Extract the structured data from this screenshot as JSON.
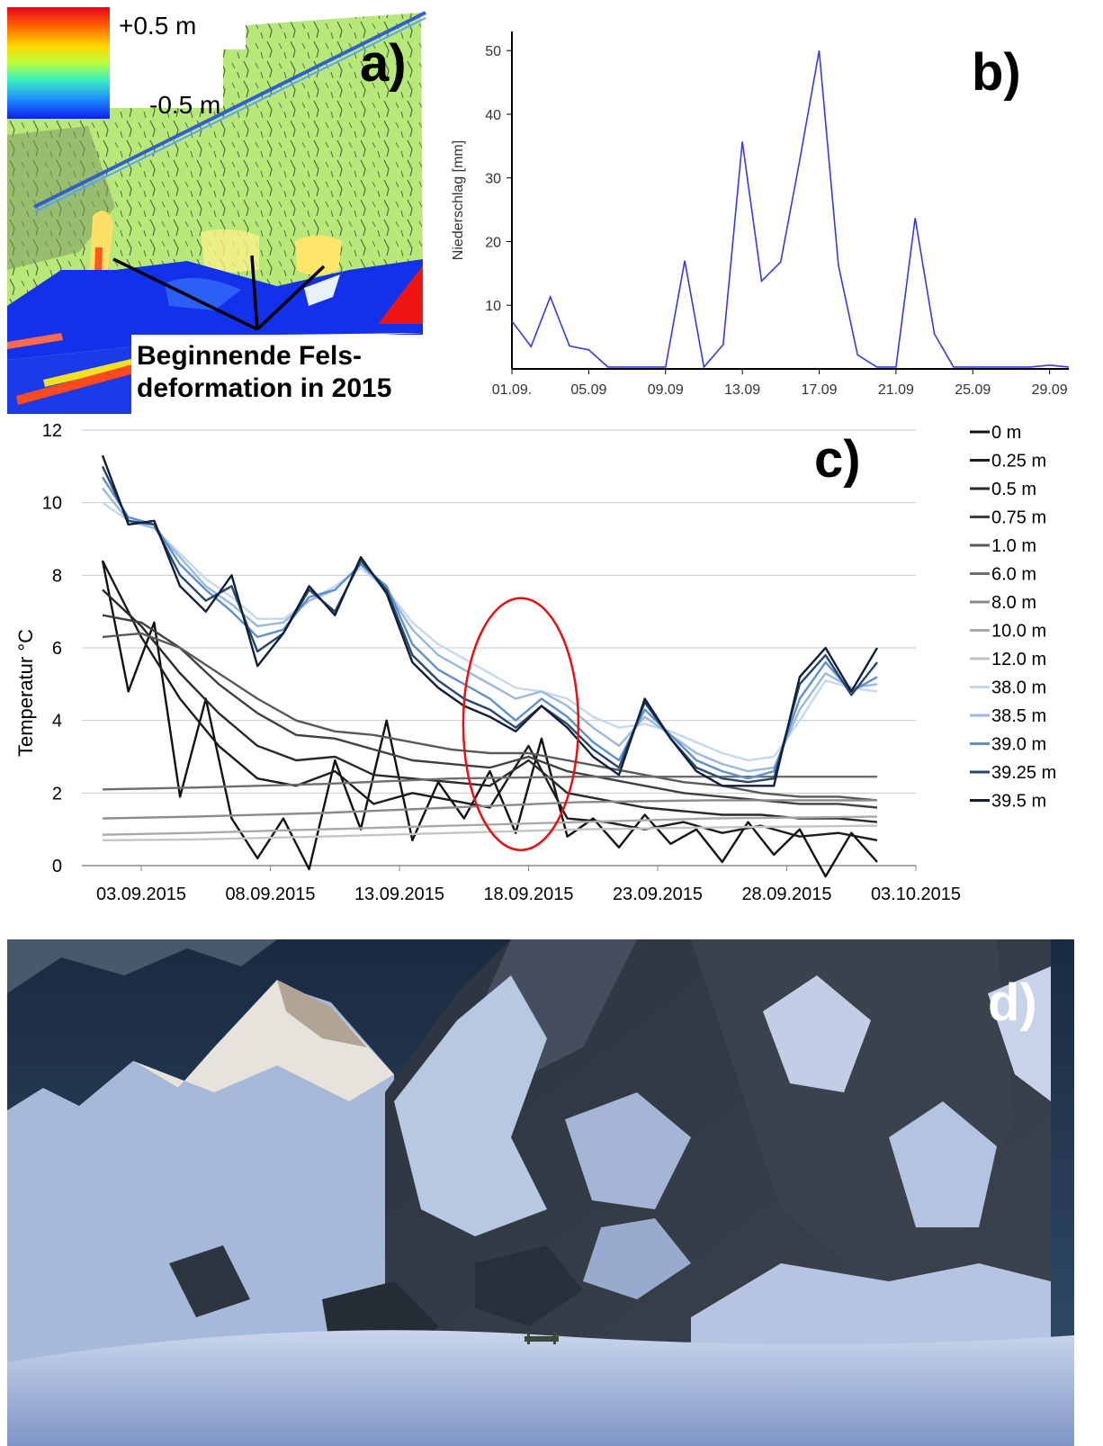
{
  "panel_a": {
    "letter": "a)",
    "colorbar": {
      "max_label": "+0.5 m",
      "min_label": "-0.5 m",
      "colors": [
        "#e8001c",
        "#ff6a00",
        "#ffd800",
        "#b8ff3c",
        "#3cf0c0",
        "#2090ff",
        "#1020f0"
      ]
    },
    "annotation_line1": "Beginnende Fels-",
    "annotation_line2": "deformation in 2015"
  },
  "panel_b": {
    "letter": "b)"
  },
  "panel_c": {
    "letter": "c)"
  },
  "panel_d": {
    "letter": "d)"
  },
  "chart_data": [
    {
      "type": "line",
      "panel": "b",
      "ylabel": "Niederschlag [mm]",
      "xlabel": "",
      "ylim": [
        0,
        53
      ],
      "y_ticks": [
        10,
        20,
        30,
        40,
        50
      ],
      "x_tick_labels": [
        "01.09.",
        "05.09",
        "09.09",
        "13.09",
        "17.09",
        "21.09",
        "25.09",
        "29.09"
      ],
      "x_tick_days": [
        1,
        5,
        9,
        13,
        17,
        21,
        25,
        29
      ],
      "xlim": [
        1,
        30
      ],
      "grid": false,
      "line_color": "#3a3adc",
      "series": [
        {
          "x": [
            1,
            2,
            3,
            4,
            5,
            6,
            7,
            8,
            9,
            10,
            11,
            12,
            13,
            14,
            15,
            16,
            17,
            18,
            19,
            20,
            21,
            22,
            23,
            24,
            25,
            26,
            27,
            28,
            29,
            30
          ],
          "values": [
            7.5,
            3.5,
            11.3,
            3.6,
            3.0,
            0.3,
            0.3,
            0.3,
            0.3,
            17.0,
            0.3,
            3.8,
            35.7,
            13.8,
            16.8,
            33.0,
            50.0,
            16.3,
            2.2,
            0.3,
            0.3,
            23.7,
            5.5,
            0.3,
            0.3,
            0.3,
            0.3,
            0.3,
            0.6,
            0.3
          ]
        }
      ]
    },
    {
      "type": "line",
      "panel": "c",
      "ylabel": "Temperatur °C",
      "xlabel": "",
      "ylim": [
        0,
        12
      ],
      "y_ticks": [
        0,
        2,
        4,
        6,
        8,
        10,
        12
      ],
      "x_tick_labels": [
        "03.09.2015",
        "08.09.2015",
        "13.09.2015",
        "18.09.2015",
        "23.09.2015",
        "28.09.2015",
        "03.10.2015"
      ],
      "x_tick_days": [
        3,
        8,
        13,
        18,
        23,
        28,
        33
      ],
      "xlim": [
        0.7,
        33
      ],
      "grid": true,
      "legend_position": "right",
      "highlight_ellipse": {
        "center_day": 17.7,
        "center_value": 3.9,
        "color": "#e81010"
      },
      "series": [
        {
          "name": "0 m",
          "color": "#111111",
          "x": [
            1.5,
            2.5,
            3.5,
            4.5,
            5.5,
            6.5,
            7.5,
            8.5,
            9.5,
            10.5,
            11.5,
            12.5,
            13.5,
            14.5,
            15.5,
            16.5,
            17.5,
            18.5,
            19.5,
            20.5,
            21.5,
            22.5,
            23.5,
            24.5,
            25.5,
            26.5,
            27.5,
            28.5,
            29.5,
            30.5,
            31.5
          ],
          "values": [
            8.4,
            4.8,
            6.7,
            1.9,
            4.6,
            1.3,
            0.2,
            1.3,
            -0.1,
            2.9,
            1.0,
            4.0,
            0.7,
            2.3,
            1.3,
            2.6,
            0.9,
            3.5,
            0.8,
            1.3,
            0.5,
            1.4,
            0.6,
            1.0,
            0.1,
            1.2,
            0.3,
            1.0,
            -0.3,
            0.9,
            0.1
          ]
        },
        {
          "name": "0.25 m",
          "color": "#1c1c1c",
          "x": [
            1.5,
            3,
            4.5,
            6,
            7.5,
            9,
            10.5,
            12,
            13.5,
            15,
            16.5,
            18,
            19.5,
            21,
            22.5,
            24,
            25.5,
            27,
            28.5,
            30,
            31.5
          ],
          "values": [
            8.4,
            6.3,
            4.6,
            3.3,
            2.4,
            2.2,
            2.6,
            1.7,
            2.0,
            1.8,
            1.6,
            3.3,
            1.3,
            1.2,
            1.0,
            1.2,
            0.9,
            1.1,
            0.8,
            0.9,
            0.7
          ]
        },
        {
          "name": "0.5 m",
          "color": "#2a2a2a",
          "x": [
            1.5,
            3,
            4.5,
            6,
            7.5,
            9,
            10.5,
            12,
            13.5,
            15,
            16.5,
            18,
            19.5,
            21,
            22.5,
            24,
            25.5,
            27,
            28.5,
            30,
            31.5
          ],
          "values": [
            7.6,
            6.6,
            5.3,
            4.2,
            3.3,
            2.9,
            3.0,
            2.5,
            2.4,
            2.3,
            2.2,
            2.9,
            2.0,
            1.8,
            1.6,
            1.5,
            1.4,
            1.4,
            1.3,
            1.3,
            1.2
          ]
        },
        {
          "name": "0.75 m",
          "color": "#404040",
          "x": [
            1.5,
            3,
            4.5,
            6,
            7.5,
            9,
            10.5,
            12,
            13.5,
            15,
            16.5,
            18,
            19.5,
            21,
            22.5,
            24,
            25.5,
            27,
            28.5,
            30,
            31.5
          ],
          "values": [
            6.9,
            6.7,
            6.0,
            5.0,
            4.2,
            3.6,
            3.5,
            3.2,
            2.9,
            2.8,
            2.7,
            3.0,
            2.6,
            2.4,
            2.2,
            2.0,
            1.9,
            1.8,
            1.7,
            1.7,
            1.6
          ]
        },
        {
          "name": "1.0 m",
          "color": "#595959",
          "x": [
            1.5,
            3,
            4.5,
            6,
            7.5,
            9,
            10.5,
            12,
            13.5,
            15,
            16.5,
            18,
            19.5,
            21,
            22.5,
            24,
            25.5,
            27,
            28.5,
            30,
            31.5
          ],
          "values": [
            6.3,
            6.4,
            6.0,
            5.3,
            4.6,
            4.0,
            3.7,
            3.6,
            3.4,
            3.2,
            3.1,
            3.1,
            2.9,
            2.7,
            2.5,
            2.3,
            2.2,
            2.0,
            1.9,
            1.9,
            1.8
          ]
        },
        {
          "name": "6.0 m",
          "color": "#6e6e6e",
          "x": [
            1.5,
            5,
            10,
            15,
            20,
            25,
            31.5
          ],
          "values": [
            2.1,
            2.15,
            2.25,
            2.4,
            2.45,
            2.45,
            2.45
          ]
        },
        {
          "name": "8.0 m",
          "color": "#8a8a8a",
          "x": [
            1.5,
            5,
            10,
            15,
            20,
            25,
            31.5
          ],
          "values": [
            1.3,
            1.35,
            1.45,
            1.6,
            1.75,
            1.8,
            1.8
          ]
        },
        {
          "name": "10.0 m",
          "color": "#a8a8a8",
          "x": [
            1.5,
            5,
            10,
            15,
            20,
            25,
            31.5
          ],
          "values": [
            0.85,
            0.9,
            1.0,
            1.1,
            1.2,
            1.3,
            1.35
          ]
        },
        {
          "name": "12.0 m",
          "color": "#c4c4c4",
          "x": [
            1.5,
            5,
            10,
            15,
            20,
            25,
            31.5
          ],
          "values": [
            0.7,
            0.72,
            0.8,
            0.9,
            1.0,
            1.05,
            1.1
          ]
        },
        {
          "name": "38.0 m",
          "color": "#c6d7ee",
          "x": [
            1.5,
            2.5,
            3.5,
            4.5,
            5.5,
            6.5,
            7.5,
            8.5,
            9.5,
            10.5,
            11.5,
            12.5,
            13.5,
            14.5,
            15.5,
            16.5,
            17.5,
            18.5,
            19.5,
            20.5,
            21.5,
            22.5,
            23.5,
            24.5,
            25.5,
            26.5,
            27.5,
            28.5,
            29.5,
            30.5,
            31.5
          ],
          "values": [
            10.0,
            9.5,
            9.3,
            8.6,
            7.9,
            7.4,
            6.8,
            6.8,
            7.3,
            7.7,
            8.2,
            7.6,
            6.7,
            6.1,
            5.7,
            5.3,
            4.9,
            4.8,
            4.6,
            4.1,
            3.8,
            3.9,
            3.7,
            3.4,
            3.1,
            2.9,
            3.0,
            4.0,
            5.1,
            4.9,
            4.8
          ]
        },
        {
          "name": "38.5 m",
          "color": "#98b8e0",
          "x": [
            1.5,
            2.5,
            3.5,
            4.5,
            5.5,
            6.5,
            7.5,
            8.5,
            9.5,
            10.5,
            11.5,
            12.5,
            13.5,
            14.5,
            15.5,
            16.5,
            17.5,
            18.5,
            19.5,
            20.5,
            21.5,
            22.5,
            23.5,
            24.5,
            25.5,
            26.5,
            27.5,
            28.5,
            29.5,
            30.5,
            31.5
          ],
          "values": [
            10.4,
            9.5,
            9.3,
            8.5,
            7.7,
            7.2,
            6.6,
            6.7,
            7.3,
            7.6,
            8.3,
            7.6,
            6.5,
            5.8,
            5.4,
            5.0,
            4.6,
            4.8,
            4.4,
            3.8,
            3.3,
            4.1,
            3.6,
            3.1,
            2.8,
            2.6,
            2.7,
            4.3,
            5.3,
            4.9,
            5.0
          ]
        },
        {
          "name": "39.0 m",
          "color": "#5f8fcc",
          "x": [
            1.5,
            2.5,
            3.5,
            4.5,
            5.5,
            6.5,
            7.5,
            8.5,
            9.5,
            10.5,
            11.5,
            12.5,
            13.5,
            14.5,
            15.5,
            16.5,
            17.5,
            18.5,
            19.5,
            20.5,
            21.5,
            22.5,
            23.5,
            24.5,
            25.5,
            26.5,
            27.5,
            28.5,
            29.5,
            30.5,
            31.5
          ],
          "values": [
            10.7,
            9.6,
            9.4,
            8.3,
            7.6,
            7.0,
            6.3,
            6.5,
            7.4,
            7.6,
            8.3,
            7.7,
            6.1,
            5.4,
            5.0,
            4.6,
            4.0,
            4.6,
            4.1,
            3.4,
            2.9,
            4.3,
            3.6,
            2.9,
            2.6,
            2.4,
            2.6,
            4.6,
            5.6,
            4.8,
            5.2
          ]
        },
        {
          "name": "39.25 m",
          "color": "#27476e",
          "x": [
            1.5,
            2.5,
            3.5,
            4.5,
            5.5,
            6.5,
            7.5,
            8.5,
            9.5,
            10.5,
            11.5,
            12.5,
            13.5,
            14.5,
            15.5,
            16.5,
            17.5,
            18.5,
            19.5,
            20.5,
            21.5,
            22.5,
            23.5,
            24.5,
            25.5,
            26.5,
            27.5,
            28.5,
            29.5,
            30.5,
            31.5
          ],
          "values": [
            11.0,
            9.5,
            9.4,
            8.0,
            7.3,
            7.7,
            5.9,
            6.4,
            7.6,
            7.0,
            8.4,
            7.6,
            5.8,
            5.1,
            4.6,
            4.3,
            3.8,
            4.4,
            3.9,
            3.2,
            2.7,
            4.5,
            3.5,
            2.7,
            2.4,
            2.3,
            2.4,
            5.0,
            5.8,
            4.7,
            5.6
          ]
        },
        {
          "name": "39.5 m",
          "color": "#101f36",
          "x": [
            1.5,
            2.5,
            3.5,
            4.5,
            5.5,
            6.5,
            7.5,
            8.5,
            9.5,
            10.5,
            11.5,
            12.5,
            13.5,
            14.5,
            15.5,
            16.5,
            17.5,
            18.5,
            19.5,
            20.5,
            21.5,
            22.5,
            23.5,
            24.5,
            25.5,
            26.5,
            27.5,
            28.5,
            29.5,
            30.5,
            31.5
          ],
          "values": [
            11.3,
            9.4,
            9.5,
            7.7,
            7.0,
            8.0,
            5.5,
            6.4,
            7.7,
            6.9,
            8.5,
            7.5,
            5.6,
            4.9,
            4.4,
            4.1,
            3.7,
            4.4,
            3.8,
            3.0,
            2.5,
            4.6,
            3.5,
            2.6,
            2.2,
            2.2,
            2.2,
            5.2,
            6.0,
            4.8,
            6.0
          ]
        }
      ]
    }
  ]
}
